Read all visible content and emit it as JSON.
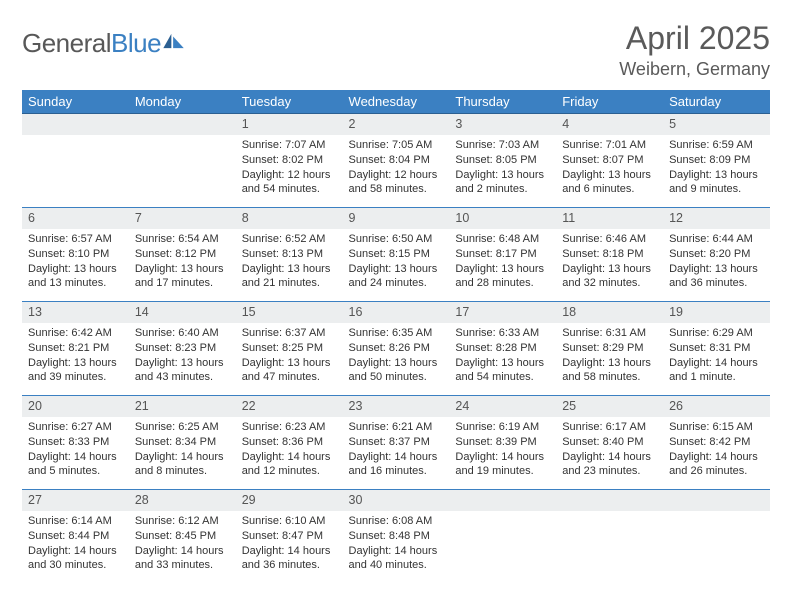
{
  "logo": {
    "text_general": "General",
    "text_blue": "Blue"
  },
  "title": "April 2025",
  "location": "Weibern, Germany",
  "colors": {
    "header_bg": "#3b80c2",
    "header_text": "#ffffff",
    "daynum_bg": "#eceeef",
    "cell_divider": "#3b80c2",
    "body_text": "#333333",
    "title_text": "#5a5a5a"
  },
  "weekdays": [
    "Sunday",
    "Monday",
    "Tuesday",
    "Wednesday",
    "Thursday",
    "Friday",
    "Saturday"
  ],
  "weeks": [
    [
      null,
      null,
      {
        "n": "1",
        "sr": "7:07 AM",
        "ss": "8:02 PM",
        "dl": "12 hours and 54 minutes."
      },
      {
        "n": "2",
        "sr": "7:05 AM",
        "ss": "8:04 PM",
        "dl": "12 hours and 58 minutes."
      },
      {
        "n": "3",
        "sr": "7:03 AM",
        "ss": "8:05 PM",
        "dl": "13 hours and 2 minutes."
      },
      {
        "n": "4",
        "sr": "7:01 AM",
        "ss": "8:07 PM",
        "dl": "13 hours and 6 minutes."
      },
      {
        "n": "5",
        "sr": "6:59 AM",
        "ss": "8:09 PM",
        "dl": "13 hours and 9 minutes."
      }
    ],
    [
      {
        "n": "6",
        "sr": "6:57 AM",
        "ss": "8:10 PM",
        "dl": "13 hours and 13 minutes."
      },
      {
        "n": "7",
        "sr": "6:54 AM",
        "ss": "8:12 PM",
        "dl": "13 hours and 17 minutes."
      },
      {
        "n": "8",
        "sr": "6:52 AM",
        "ss": "8:13 PM",
        "dl": "13 hours and 21 minutes."
      },
      {
        "n": "9",
        "sr": "6:50 AM",
        "ss": "8:15 PM",
        "dl": "13 hours and 24 minutes."
      },
      {
        "n": "10",
        "sr": "6:48 AM",
        "ss": "8:17 PM",
        "dl": "13 hours and 28 minutes."
      },
      {
        "n": "11",
        "sr": "6:46 AM",
        "ss": "8:18 PM",
        "dl": "13 hours and 32 minutes."
      },
      {
        "n": "12",
        "sr": "6:44 AM",
        "ss": "8:20 PM",
        "dl": "13 hours and 36 minutes."
      }
    ],
    [
      {
        "n": "13",
        "sr": "6:42 AM",
        "ss": "8:21 PM",
        "dl": "13 hours and 39 minutes."
      },
      {
        "n": "14",
        "sr": "6:40 AM",
        "ss": "8:23 PM",
        "dl": "13 hours and 43 minutes."
      },
      {
        "n": "15",
        "sr": "6:37 AM",
        "ss": "8:25 PM",
        "dl": "13 hours and 47 minutes."
      },
      {
        "n": "16",
        "sr": "6:35 AM",
        "ss": "8:26 PM",
        "dl": "13 hours and 50 minutes."
      },
      {
        "n": "17",
        "sr": "6:33 AM",
        "ss": "8:28 PM",
        "dl": "13 hours and 54 minutes."
      },
      {
        "n": "18",
        "sr": "6:31 AM",
        "ss": "8:29 PM",
        "dl": "13 hours and 58 minutes."
      },
      {
        "n": "19",
        "sr": "6:29 AM",
        "ss": "8:31 PM",
        "dl": "14 hours and 1 minute."
      }
    ],
    [
      {
        "n": "20",
        "sr": "6:27 AM",
        "ss": "8:33 PM",
        "dl": "14 hours and 5 minutes."
      },
      {
        "n": "21",
        "sr": "6:25 AM",
        "ss": "8:34 PM",
        "dl": "14 hours and 8 minutes."
      },
      {
        "n": "22",
        "sr": "6:23 AM",
        "ss": "8:36 PM",
        "dl": "14 hours and 12 minutes."
      },
      {
        "n": "23",
        "sr": "6:21 AM",
        "ss": "8:37 PM",
        "dl": "14 hours and 16 minutes."
      },
      {
        "n": "24",
        "sr": "6:19 AM",
        "ss": "8:39 PM",
        "dl": "14 hours and 19 minutes."
      },
      {
        "n": "25",
        "sr": "6:17 AM",
        "ss": "8:40 PM",
        "dl": "14 hours and 23 minutes."
      },
      {
        "n": "26",
        "sr": "6:15 AM",
        "ss": "8:42 PM",
        "dl": "14 hours and 26 minutes."
      }
    ],
    [
      {
        "n": "27",
        "sr": "6:14 AM",
        "ss": "8:44 PM",
        "dl": "14 hours and 30 minutes."
      },
      {
        "n": "28",
        "sr": "6:12 AM",
        "ss": "8:45 PM",
        "dl": "14 hours and 33 minutes."
      },
      {
        "n": "29",
        "sr": "6:10 AM",
        "ss": "8:47 PM",
        "dl": "14 hours and 36 minutes."
      },
      {
        "n": "30",
        "sr": "6:08 AM",
        "ss": "8:48 PM",
        "dl": "14 hours and 40 minutes."
      },
      null,
      null,
      null
    ]
  ],
  "labels": {
    "sunrise": "Sunrise:",
    "sunset": "Sunset:",
    "daylight": "Daylight:"
  }
}
